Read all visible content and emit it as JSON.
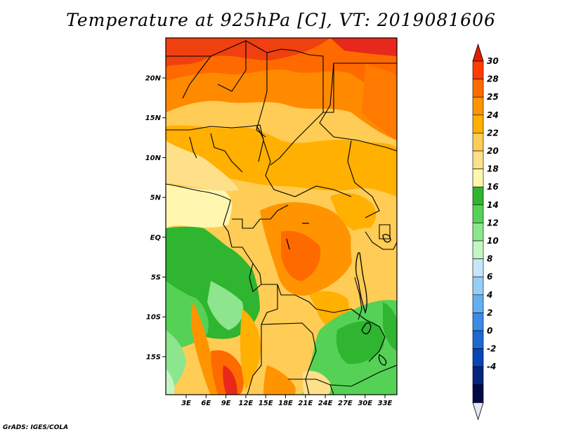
{
  "title": "Temperature at 925hPa [C], VT: 2019081606",
  "credit": "GrADS: IGES/COLA",
  "map": {
    "region": "Central / Southern Africa",
    "variable": "Temperature at 925hPa",
    "units": "C",
    "valid_time": "2019081606",
    "lat_labels": [
      "20N",
      "15N",
      "10N",
      "5N",
      "EQ",
      "5S",
      "10S",
      "15S"
    ],
    "lon_labels": [
      "3E",
      "6E",
      "9E",
      "12E",
      "15E",
      "18E",
      "21E",
      "24E",
      "27E",
      "30E",
      "33E"
    ]
  },
  "colorbar": {
    "labels": [
      "30",
      "28",
      "25",
      "24",
      "22",
      "20",
      "18",
      "16",
      "14",
      "12",
      "10",
      "8",
      "6",
      "4",
      "2",
      "0",
      "-2",
      "-4"
    ],
    "colors": [
      "#ff3d00",
      "#ff6a00",
      "#ff9400",
      "#ffb000",
      "#ffcc55",
      "#ffe08a",
      "#fff6b0",
      "#2fb52f",
      "#55d255",
      "#8de58d",
      "#c2f5c2",
      "#c8e6fb",
      "#96cdf5",
      "#64aff0",
      "#3c8ce6",
      "#1e68d2",
      "#0a45b4",
      "#06257c",
      "#020a46"
    ],
    "top_color": "#e01e00",
    "bottom_color": "#e6e6f5"
  }
}
